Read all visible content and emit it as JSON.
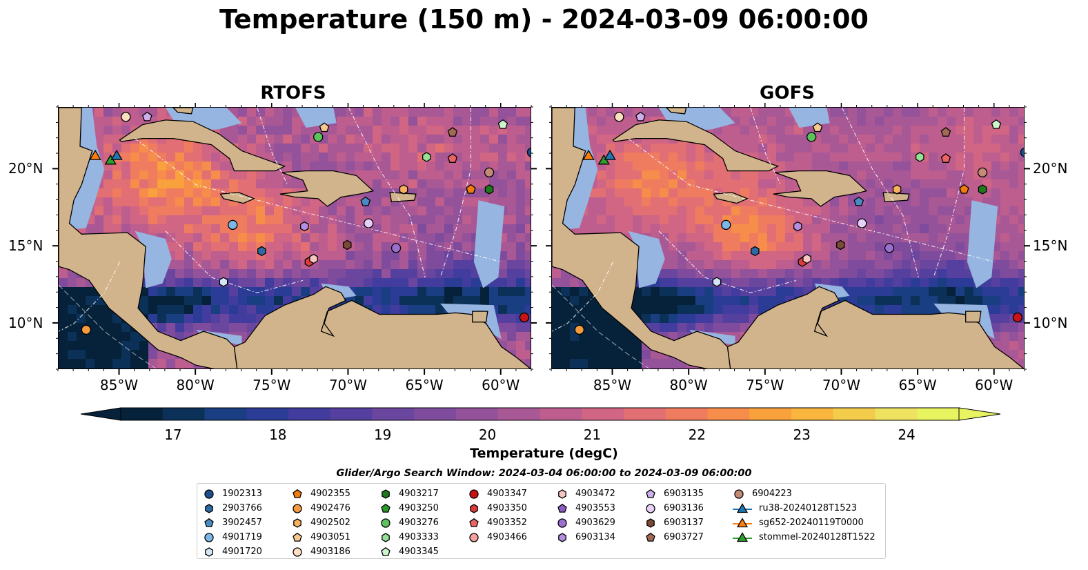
{
  "title": "Temperature (150 m) - 2024-03-09 06:00:00",
  "panels": [
    {
      "id": "rtofs",
      "title": "RTOFS"
    },
    {
      "id": "gofs",
      "title": "GOFS"
    }
  ],
  "map": {
    "extent": {
      "lon_min": -89,
      "lon_max": -58,
      "lat_min": 7,
      "lat_max": 24
    },
    "lon_ticks": [
      "85°W",
      "80°W",
      "75°W",
      "70°W",
      "65°W",
      "60°W"
    ],
    "lat_ticks": [
      "20°N",
      "15°N",
      "10°N"
    ],
    "land_color": "#d2b48c",
    "shelf_color": "#96b5e0",
    "deep_ocean_color": "#06223a"
  },
  "colorbar": {
    "label": "Temperature (degC)",
    "ticks": [
      "17",
      "18",
      "19",
      "20",
      "21",
      "22",
      "23",
      "24"
    ],
    "range": [
      16.5,
      24.5
    ],
    "step": 0.5,
    "colors": [
      "#06223a",
      "#0c3158",
      "#1a3e82",
      "#2b3c96",
      "#413c9e",
      "#55409f",
      "#6a469f",
      "#7f4c9d",
      "#93529a",
      "#a95896",
      "#bd5e8f",
      "#d06584",
      "#e26f73",
      "#ef7c5f",
      "#f78d4a",
      "#f9a13c",
      "#f8b63e",
      "#f4cc4c",
      "#eee260",
      "#e8f360"
    ]
  },
  "search_window": "Glider/Argo Search Window: 2024-03-04 06:00:00 to 2024-03-09 06:00:00",
  "legend": {
    "columns": [
      [
        {
          "label": "1902313",
          "marker": "circle",
          "color": "#1f4e8c"
        },
        {
          "label": "2903766",
          "marker": "hexagon",
          "color": "#2d6aa3"
        },
        {
          "label": "3902457",
          "marker": "pentagon",
          "color": "#4a8ac4"
        },
        {
          "label": "4901719",
          "marker": "circle",
          "color": "#7db7e8"
        },
        {
          "label": "4901720",
          "marker": "hexagon",
          "color": "#d3e6f5"
        }
      ],
      [
        {
          "label": "4902355",
          "marker": "pentagon",
          "color": "#f07c0c"
        },
        {
          "label": "4902476",
          "marker": "circle",
          "color": "#f59a3e"
        },
        {
          "label": "4902502",
          "marker": "hexagon",
          "color": "#f7b05e"
        },
        {
          "label": "4903051",
          "marker": "pentagon",
          "color": "#f9c890"
        },
        {
          "label": "4903186",
          "marker": "circle",
          "color": "#fbdfc0"
        }
      ],
      [
        {
          "label": "4903217",
          "marker": "hexagon",
          "color": "#1c7a1c"
        },
        {
          "label": "4903250",
          "marker": "pentagon",
          "color": "#2a9a2a"
        },
        {
          "label": "4903276",
          "marker": "circle",
          "color": "#5cc35c"
        },
        {
          "label": "4903333",
          "marker": "hexagon",
          "color": "#95e195"
        },
        {
          "label": "4903345",
          "marker": "pentagon",
          "color": "#ccf5cc"
        }
      ],
      [
        {
          "label": "4903347",
          "marker": "circle",
          "color": "#c81414"
        },
        {
          "label": "4903350",
          "marker": "hexagon",
          "color": "#dd3b3b"
        },
        {
          "label": "4903352",
          "marker": "pentagon",
          "color": "#ea6464"
        },
        {
          "label": "4903466",
          "marker": "circle",
          "color": "#f4a0a0"
        }
      ],
      [
        {
          "label": "4903472",
          "marker": "hexagon",
          "color": "#f7c6c0"
        },
        {
          "label": "4903553",
          "marker": "pentagon",
          "color": "#8a5cc4"
        },
        {
          "label": "4903629",
          "marker": "circle",
          "color": "#9b6fd0"
        },
        {
          "label": "6903134",
          "marker": "hexagon",
          "color": "#b48ee0"
        }
      ],
      [
        {
          "label": "6903135",
          "marker": "pentagon",
          "color": "#cfb0ee"
        },
        {
          "label": "6903136",
          "marker": "circle",
          "color": "#e6d0f7"
        },
        {
          "label": "6903137",
          "marker": "hexagon",
          "color": "#7a4a35"
        },
        {
          "label": "6903727",
          "marker": "pentagon",
          "color": "#a06a55"
        }
      ],
      [
        {
          "label": "6904223",
          "marker": "circle",
          "color": "#c48a78"
        },
        {
          "label": "ru38-20240128T1523",
          "marker": "triangle-line",
          "color": "#1f77b4"
        },
        {
          "label": "sg652-20240119T0000",
          "marker": "triangle-line",
          "color": "#ff7f0e"
        },
        {
          "label": "stommel-20240128T1522",
          "marker": "triangle-line",
          "color": "#2ca02c"
        }
      ]
    ]
  },
  "float_positions": [
    {
      "id": "4903186",
      "lon": -84.6,
      "lat": 23.4
    },
    {
      "id": "6903135",
      "lon": -83.2,
      "lat": 23.4
    },
    {
      "id": "4903051",
      "lon": -71.6,
      "lat": 22.7
    },
    {
      "id": "4903276",
      "lon": -72.0,
      "lat": 22.1
    },
    {
      "id": "6903727",
      "lon": -63.2,
      "lat": 22.4
    },
    {
      "id": "4903345",
      "lon": -59.9,
      "lat": 22.9
    },
    {
      "id": "4903333",
      "lon": -64.9,
      "lat": 20.8
    },
    {
      "id": "4903352",
      "lon": -63.2,
      "lat": 20.7
    },
    {
      "id": "6904223",
      "lon": -60.8,
      "lat": 19.8
    },
    {
      "id": "4902502",
      "lon": -66.4,
      "lat": 18.7
    },
    {
      "id": "4902355",
      "lon": -62.0,
      "lat": 18.7
    },
    {
      "id": "4903217",
      "lon": -60.8,
      "lat": 18.7
    },
    {
      "id": "3902457",
      "lon": -68.9,
      "lat": 17.9
    },
    {
      "id": "4901719",
      "lon": -77.6,
      "lat": 16.4
    },
    {
      "id": "6903134",
      "lon": -72.9,
      "lat": 16.3
    },
    {
      "id": "6903136",
      "lon": -68.7,
      "lat": 16.5
    },
    {
      "id": "6903137",
      "lon": -70.1,
      "lat": 15.1
    },
    {
      "id": "4903629",
      "lon": -66.9,
      "lat": 14.9
    },
    {
      "id": "2903766",
      "lon": -75.7,
      "lat": 14.7
    },
    {
      "id": "4903350",
      "lon": -72.6,
      "lat": 14.0
    },
    {
      "id": "4903472",
      "lon": -72.3,
      "lat": 14.2
    },
    {
      "id": "4901720",
      "lon": -78.2,
      "lat": 12.7
    },
    {
      "id": "4903347",
      "lon": -58.5,
      "lat": 10.4
    },
    {
      "id": "1902313",
      "lon": -58.0,
      "lat": 21.1
    },
    {
      "id": "4902476",
      "lon": -87.2,
      "lat": 9.6
    }
  ],
  "glider_positions": [
    {
      "id": "sg652-20240119T0000",
      "lon": -86.6,
      "lat": 20.9
    },
    {
      "id": "stommel-20240128T1522",
      "lon": -85.6,
      "lat": 20.6
    },
    {
      "id": "ru38-20240128T1523",
      "lon": -85.2,
      "lat": 20.9
    }
  ]
}
